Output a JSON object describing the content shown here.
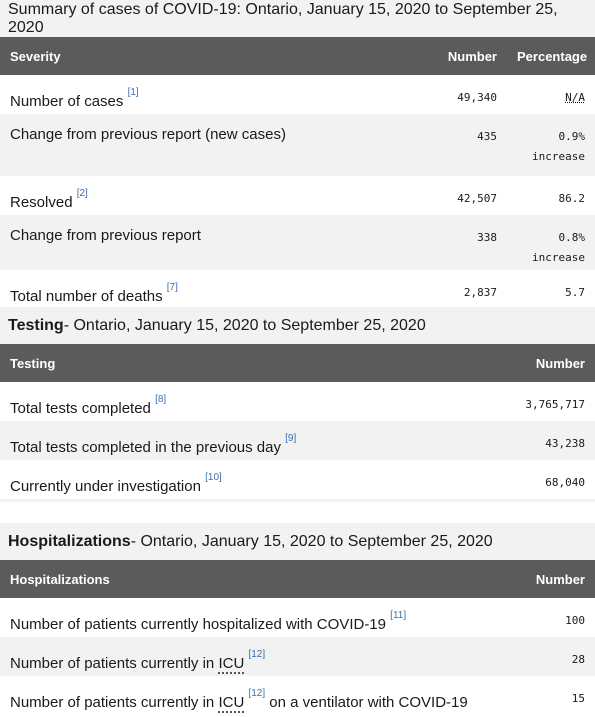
{
  "summary": {
    "caption": "Summary of cases of COVID-19: Ontario, January 15, 2020 to September 25, 2020",
    "headers": [
      "Severity",
      "Number",
      "Percentage"
    ],
    "rows": [
      {
        "label": "Number of cases",
        "ref": "[1]",
        "number": "49,340",
        "pct": "N/A",
        "pct2": ""
      },
      {
        "label": "Change from previous report (new cases)",
        "ref": "",
        "number": "435",
        "pct": "0.9%",
        "pct2": "increase"
      },
      {
        "label": "Resolved",
        "ref": "[2]",
        "number": "42,507",
        "pct": "86.2",
        "pct2": ""
      },
      {
        "label": "Change from previous report",
        "ref": "",
        "number": "338",
        "pct": "0.8%",
        "pct2": "increase"
      },
      {
        "label": "Total number of deaths",
        "ref": "[7]",
        "number": "2,837",
        "pct": "5.7",
        "pct2": ""
      }
    ]
  },
  "testing": {
    "caption_bold": "Testing",
    "caption_rest": " - Ontario, January 15, 2020 to September 25, 2020",
    "headers": [
      "Testing",
      "Number"
    ],
    "rows": [
      {
        "label": "Total tests completed",
        "ref": "[8]",
        "number": "3,765,717"
      },
      {
        "label": "Total tests completed in the previous day",
        "ref": "[9]",
        "number": "43,238"
      },
      {
        "label": "Currently under investigation",
        "ref": "[10]",
        "number": "68,040"
      }
    ]
  },
  "hosp": {
    "caption_bold": "Hospitalizations",
    "caption_rest": " - Ontario, January 15, 2020 to September 25, 2020",
    "headers": [
      "Hospitalizations",
      "Number"
    ],
    "rows": [
      {
        "label_a": "Number of patients currently hospitalized with COVID-19",
        "icu": "",
        "ref": "[11]",
        "label_b": "",
        "number": "100"
      },
      {
        "label_a": "Number of patients currently in ",
        "icu": "ICU",
        "ref": "[12]",
        "label_b": "",
        "number": "28"
      },
      {
        "label_a": "Number of patients currently in ",
        "icu": "ICU",
        "ref": "[12]",
        "label_b": " on a ventilator with COVID-19",
        "number": "15"
      }
    ]
  }
}
